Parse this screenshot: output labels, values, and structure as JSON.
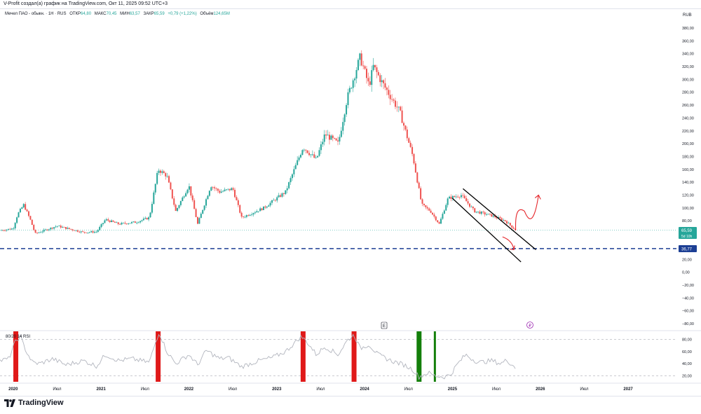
{
  "caption": "V-Profit создал(а) график на TradingView.com, Окт 11, 2025 09:52 UTC+3",
  "legend": {
    "symbol": "Мечел ПАО - обыкн. · 1Н · RUS",
    "open_label": "ОТКР",
    "open": "64,80",
    "high_label": "МАКС",
    "high": "70,45",
    "low_label": "МИН",
    "low": "63,57",
    "close_label": "ЗАКР",
    "close": "65,59",
    "change": "+0,79 (+1,22%)",
    "volume_label": "Объём",
    "volume": "124,65М"
  },
  "currency": "RUB",
  "price_badge": {
    "value": "65,59",
    "sub": "5d 10h"
  },
  "level_badge": "36,77",
  "rsi_label": "80/20 14 RSI",
  "event_markers": {
    "earnings": "E",
    "dividend": "₽"
  },
  "brand": "TradingView",
  "colors": {
    "up": "#26a69a",
    "down": "#ef5350",
    "channel": "#000000",
    "annotation": "#e5252a",
    "level": "#1c3f94",
    "rsi_line": "#b2b5be",
    "rsi_green": "#137f0a",
    "rsi_red": "#e01919"
  },
  "chart_data": {
    "type": "candlestick",
    "interval": "1W",
    "price_axis": {
      "range": [
        -80,
        380
      ],
      "ticks": [
        380,
        360,
        340,
        320,
        300,
        280,
        260,
        240,
        220,
        200,
        180,
        160,
        140,
        120,
        100,
        80,
        60,
        40,
        20,
        0,
        -20,
        -40,
        -60,
        -80
      ],
      "tick_labels": [
        "380,00",
        "360,00",
        "340,00",
        "320,00",
        "300,00",
        "280,00",
        "260,00",
        "240,00",
        "220,00",
        "200,00",
        "180,00",
        "160,00",
        "140,00",
        "120,00",
        "100,00",
        "80,00",
        "60,00",
        "40,00",
        "20,00",
        "0,00",
        "−20,00",
        "−40,00",
        "−60,00",
        "−80,00"
      ]
    },
    "time_axis": {
      "range": [
        2019.85,
        2027.55
      ],
      "ticks": [
        2020.0,
        2020.5,
        2021.0,
        2021.5,
        2022.0,
        2022.5,
        2023.0,
        2023.5,
        2024.0,
        2024.5,
        2025.0,
        2025.5,
        2026.0,
        2026.5,
        2027.0
      ],
      "tick_labels": [
        "2020",
        "Июл",
        "2021",
        "Июл",
        "2022",
        "Июл",
        "2023",
        "Июл",
        "2024",
        "Июл",
        "2025",
        "Июл",
        "2026",
        "Июл",
        "2027"
      ]
    },
    "price_path": [
      [
        2019.85,
        65
      ],
      [
        2020.0,
        68
      ],
      [
        2020.05,
        90
      ],
      [
        2020.12,
        105
      ],
      [
        2020.2,
        80
      ],
      [
        2020.25,
        60
      ],
      [
        2020.5,
        72
      ],
      [
        2020.8,
        62
      ],
      [
        2020.95,
        63
      ],
      [
        2021.05,
        82
      ],
      [
        2021.2,
        75
      ],
      [
        2021.4,
        78
      ],
      [
        2021.55,
        85
      ],
      [
        2021.65,
        160
      ],
      [
        2021.75,
        150
      ],
      [
        2021.85,
        95
      ],
      [
        2022.0,
        135
      ],
      [
        2022.1,
        75
      ],
      [
        2022.25,
        135
      ],
      [
        2022.35,
        125
      ],
      [
        2022.5,
        130
      ],
      [
        2022.6,
        85
      ],
      [
        2022.85,
        100
      ],
      [
        2023.1,
        125
      ],
      [
        2023.3,
        195
      ],
      [
        2023.45,
        175
      ],
      [
        2023.55,
        215
      ],
      [
        2023.7,
        200
      ],
      [
        2023.8,
        270
      ],
      [
        2023.95,
        335
      ],
      [
        2024.05,
        290
      ],
      [
        2024.1,
        320
      ],
      [
        2024.2,
        295
      ],
      [
        2024.4,
        250
      ],
      [
        2024.55,
        180
      ],
      [
        2024.65,
        105
      ],
      [
        2024.75,
        95
      ],
      [
        2024.85,
        75
      ],
      [
        2024.95,
        115
      ],
      [
        2025.1,
        120
      ],
      [
        2025.25,
        95
      ],
      [
        2025.45,
        88
      ],
      [
        2025.6,
        80
      ],
      [
        2025.72,
        65.59
      ]
    ],
    "channel": {
      "upper": [
        [
          2025.12,
          130
        ],
        [
          2025.95,
          35
        ]
      ],
      "lower": [
        [
          2025.0,
          115
        ],
        [
          2025.78,
          16
        ]
      ]
    },
    "horizontal_levels": [
      {
        "name": "current-price",
        "value": 65.59,
        "style": "dotted",
        "color": "#3fb5a7"
      },
      {
        "name": "support-level",
        "value": 36.77,
        "style": "dashed",
        "color": "#1c3f94"
      }
    ],
    "annotations": {
      "arrow_down": {
        "from": [
          2025.57,
          55
        ],
        "to": [
          2025.7,
          35
        ]
      },
      "arrow_up": {
        "from": [
          2025.72,
          65
        ],
        "via": [
          2025.82,
          95
        ],
        "to": [
          2025.98,
          120
        ]
      }
    },
    "rsi": {
      "range": [
        10,
        90
      ],
      "ticks": [
        80,
        60,
        40,
        20
      ],
      "tick_labels": [
        "80,00",
        "60,00",
        "40,00",
        "20,00"
      ],
      "upper_band": 80,
      "lower_band": 20,
      "values": [
        [
          2019.85,
          45
        ],
        [
          2019.95,
          48
        ],
        [
          2020.02,
          75
        ],
        [
          2020.08,
          85
        ],
        [
          2020.15,
          60
        ],
        [
          2020.22,
          42
        ],
        [
          2020.3,
          40
        ],
        [
          2020.45,
          48
        ],
        [
          2020.6,
          38
        ],
        [
          2020.8,
          45
        ],
        [
          2020.95,
          36
        ],
        [
          2021.05,
          55
        ],
        [
          2021.2,
          45
        ],
        [
          2021.35,
          48
        ],
        [
          2021.55,
          42
        ],
        [
          2021.62,
          75
        ],
        [
          2021.66,
          92
        ],
        [
          2021.75,
          60
        ],
        [
          2021.85,
          40
        ],
        [
          2022.0,
          55
        ],
        [
          2022.1,
          38
        ],
        [
          2022.2,
          62
        ],
        [
          2022.35,
          48
        ],
        [
          2022.45,
          50
        ],
        [
          2022.6,
          35
        ],
        [
          2022.8,
          45
        ],
        [
          2022.95,
          50
        ],
        [
          2023.1,
          60
        ],
        [
          2023.28,
          85
        ],
        [
          2023.35,
          75
        ],
        [
          2023.45,
          55
        ],
        [
          2023.55,
          68
        ],
        [
          2023.7,
          55
        ],
        [
          2023.8,
          78
        ],
        [
          2023.88,
          88
        ],
        [
          2023.95,
          65
        ],
        [
          2024.05,
          72
        ],
        [
          2024.15,
          55
        ],
        [
          2024.3,
          45
        ],
        [
          2024.45,
          38
        ],
        [
          2024.55,
          30
        ],
        [
          2024.62,
          18
        ],
        [
          2024.72,
          25
        ],
        [
          2024.8,
          20
        ],
        [
          2024.9,
          18
        ],
        [
          2024.98,
          22
        ],
        [
          2025.05,
          38
        ],
        [
          2025.15,
          55
        ],
        [
          2025.22,
          48
        ],
        [
          2025.3,
          42
        ],
        [
          2025.45,
          45
        ],
        [
          2025.55,
          40
        ],
        [
          2025.62,
          46
        ],
        [
          2025.72,
          33
        ]
      ],
      "highlight_bars": [
        {
          "type": "overbought",
          "at": 2020.03
        },
        {
          "type": "overbought",
          "at": 2021.65
        },
        {
          "type": "overbought",
          "at": 2023.3
        },
        {
          "type": "overbought",
          "at": 2023.88
        },
        {
          "type": "oversold",
          "at": 2024.62
        },
        {
          "type": "oversold",
          "at": 2024.8
        }
      ]
    }
  }
}
